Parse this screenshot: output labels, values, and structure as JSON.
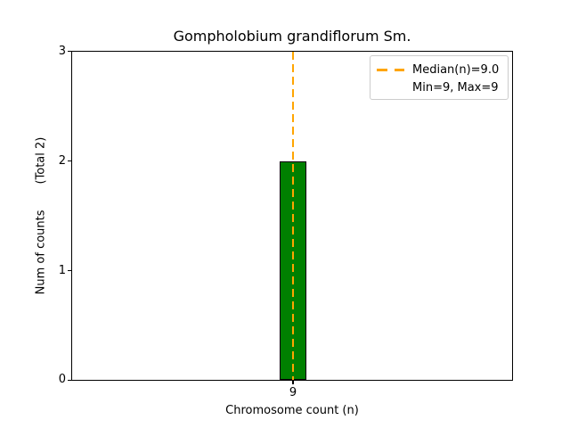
{
  "figure": {
    "title": "Gompholobium grandiflorum Sm.",
    "xlabel": "Chromosome count (n)",
    "ylabel": "Num of counts       (Total 2)"
  },
  "axis": {
    "yticks": [
      "3",
      "2",
      "1",
      "0"
    ],
    "xticks": [
      "9"
    ]
  },
  "legend": {
    "median_label": "Median(n)=9.0",
    "minmax_label": "Min=9, Max=9"
  },
  "colors": {
    "bar_fill": "#008000",
    "bar_edge": "#000000",
    "median_line": "#FFA500",
    "legend_border": "#cccccc",
    "background": "#ffffff",
    "text": "#000000"
  },
  "chart_data": {
    "type": "bar",
    "categories": [
      9
    ],
    "values": [
      2
    ],
    "title": "Gompholobium grandiflorum Sm.",
    "xlabel": "Chromosome count (n)",
    "ylabel": "Num of counts (Total 2)",
    "ylim": [
      0,
      3
    ],
    "yticks": [
      0,
      1,
      2,
      3
    ],
    "xticks": [
      9
    ],
    "total_counts": 2,
    "median_n": 9.0,
    "min_n": 9,
    "max_n": 9,
    "grid": false,
    "legend_position": "upper right",
    "legend_entries": [
      "Median(n)=9.0",
      "Min=9, Max=9"
    ],
    "bar_color": "#008000",
    "median_line_color": "#FFA500",
    "median_line_style": "dashed"
  }
}
